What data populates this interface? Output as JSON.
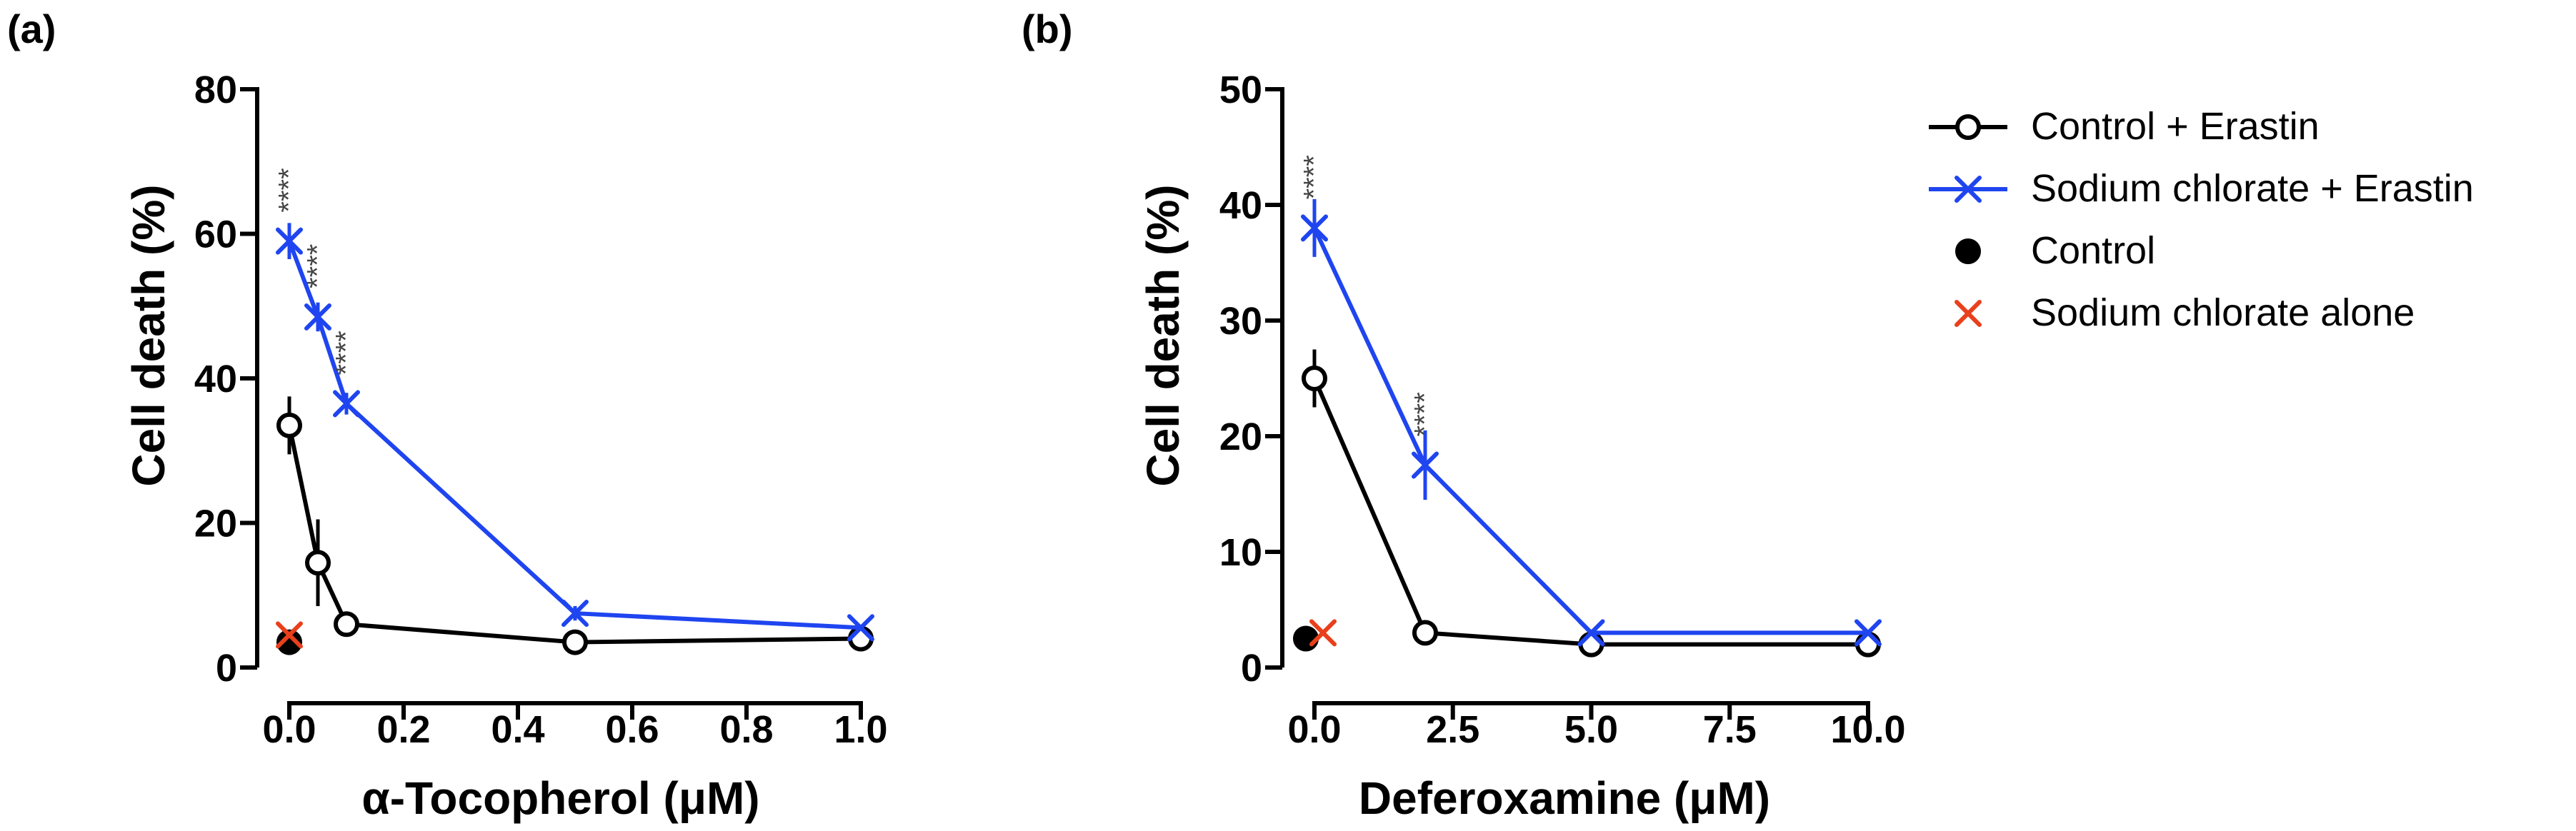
{
  "chart_data": [
    {
      "type": "line",
      "panel_label": "(a)",
      "xlabel": "α-Tocopherol (μM)",
      "ylabel": "Cell death (%)",
      "xlim": [
        0,
        1.0
      ],
      "ylim": [
        0,
        80
      ],
      "xticks": [
        "0.0",
        "0.2",
        "0.4",
        "0.6",
        "0.8",
        "1.0"
      ],
      "yticks": [
        "0",
        "20",
        "40",
        "60",
        "80"
      ],
      "series": [
        {
          "name": "Control + Erastin",
          "color": "#000000",
          "marker": "open-circle",
          "x": [
            0,
            0.05,
            0.1,
            0.5,
            1.0
          ],
          "y": [
            33.5,
            14.5,
            6,
            3.5,
            4
          ],
          "err": [
            4,
            6,
            1,
            0.5,
            0.5
          ]
        },
        {
          "name": "Sodium chlorate + Erastin",
          "color": "#1f45f0",
          "marker": "x",
          "x": [
            0,
            0.05,
            0.1,
            0.5,
            1.0
          ],
          "y": [
            59,
            48.5,
            36.5,
            7.5,
            5.5
          ],
          "err": [
            2.5,
            2,
            1.5,
            1,
            0.5
          ]
        },
        {
          "name": "Control",
          "color": "#000000",
          "marker": "filled-circle",
          "x": [
            0
          ],
          "y": [
            3.5
          ],
          "err": [
            0
          ]
        },
        {
          "name": "Sodium chlorate alone",
          "color": "#e8401c",
          "marker": "x",
          "x": [
            0
          ],
          "y": [
            4.5
          ],
          "err": [
            0
          ]
        }
      ],
      "annotations": [
        {
          "text": "****",
          "x": 0,
          "y": 59
        },
        {
          "text": "****",
          "x": 0.05,
          "y": 48.5
        },
        {
          "text": "****",
          "x": 0.1,
          "y": 36.5
        }
      ]
    },
    {
      "type": "line",
      "panel_label": "(b)",
      "xlabel": "Deferoxamine (μM)",
      "ylabel": "Cell death (%)",
      "xlim": [
        0,
        10.0
      ],
      "ylim": [
        0,
        50
      ],
      "xticks": [
        "0.0",
        "2.5",
        "5.0",
        "7.5",
        "10.0"
      ],
      "yticks": [
        "0",
        "10",
        "20",
        "30",
        "40",
        "50"
      ],
      "series": [
        {
          "name": "Control + Erastin",
          "color": "#000000",
          "marker": "open-circle",
          "x": [
            0,
            2,
            5,
            10
          ],
          "y": [
            25,
            3,
            2,
            2
          ],
          "err": [
            2.5,
            0.5,
            0.3,
            0.3
          ]
        },
        {
          "name": "Sodium chlorate + Erastin",
          "color": "#1f45f0",
          "marker": "x",
          "x": [
            0,
            2,
            5,
            10
          ],
          "y": [
            38,
            17.5,
            3,
            3
          ],
          "err": [
            2.5,
            3,
            0.3,
            0.3
          ]
        },
        {
          "name": "Control",
          "color": "#000000",
          "marker": "filled-circle",
          "x": [
            0
          ],
          "y": [
            2.5
          ],
          "err": [
            0
          ]
        },
        {
          "name": "Sodium chlorate alone",
          "color": "#e8401c",
          "marker": "x",
          "x": [
            0
          ],
          "y": [
            3
          ],
          "err": [
            0
          ]
        }
      ],
      "annotations": [
        {
          "text": "****",
          "x": 0,
          "y": 38
        },
        {
          "text": "****",
          "x": 2,
          "y": 17.5
        }
      ]
    }
  ],
  "legend": {
    "placement": "right",
    "entries": [
      {
        "label": "Control + Erastin",
        "color": "#000000",
        "marker": "open-circle",
        "line": true
      },
      {
        "label": "Sodium chlorate + Erastin",
        "color": "#1f45f0",
        "marker": "x",
        "line": true
      },
      {
        "label": "Control",
        "color": "#000000",
        "marker": "filled-circle",
        "line": false
      },
      {
        "label": "Sodium chlorate alone",
        "color": "#e8401c",
        "marker": "x",
        "line": false
      }
    ]
  }
}
